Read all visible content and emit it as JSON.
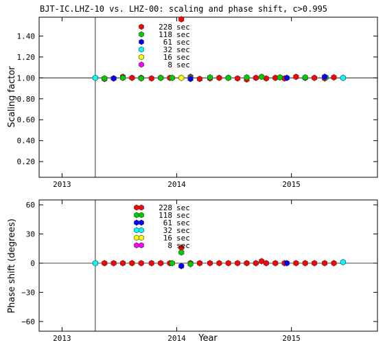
{
  "chart_data": [
    {
      "type": "scatter",
      "title": "BJT-IC.LHZ-10 vs. LHZ-00: scaling and phase shift, c>0.995",
      "xlabel": "",
      "ylabel": "Scaling factor",
      "xlim": [
        2012.8,
        2015.75
      ],
      "ylim": [
        0.05,
        1.58
      ],
      "x_tick_labels": [
        "2013",
        "2014",
        "2015"
      ],
      "x_ticks": [
        2013,
        2014,
        2015
      ],
      "y_tick_labels": [
        "0.20",
        "0.40",
        "0.60",
        "0.80",
        "1.00",
        "1.20",
        "1.40"
      ],
      "y_ticks": [
        0.2,
        0.4,
        0.6,
        0.8,
        1.0,
        1.2,
        1.4
      ],
      "vline_x": 2013.29,
      "hline_y": 1.0,
      "legend": {
        "placement": "top-left",
        "entries": [
          {
            "label": "228 sec",
            "color": "#ff0000"
          },
          {
            "label": "118 sec",
            "color": "#00cc00"
          },
          {
            "label": "61 sec",
            "color": "#0000ff"
          },
          {
            "label": "32 sec",
            "color": "#00ffff"
          },
          {
            "label": "16 sec",
            "color": "#ffff00"
          },
          {
            "label": "8 sec",
            "color": "#ff00ff"
          }
        ]
      },
      "series": [
        {
          "name": "228 sec",
          "color": "#ff0000",
          "points": [
            [
              2013.37,
              0.99
            ],
            [
              2013.45,
              0.995
            ],
            [
              2013.53,
              1.01
            ],
            [
              2013.61,
              1.0
            ],
            [
              2013.69,
              1.0
            ],
            [
              2013.78,
              0.995
            ],
            [
              2013.86,
              1.0
            ],
            [
              2013.94,
              1.0
            ],
            [
              2014.04,
              1.56
            ],
            [
              2014.12,
              1.01
            ],
            [
              2014.2,
              0.99
            ],
            [
              2014.29,
              0.995
            ],
            [
              2014.37,
              1.0
            ],
            [
              2014.45,
              1.0
            ],
            [
              2014.53,
              0.995
            ],
            [
              2014.61,
              0.985
            ],
            [
              2014.69,
              1.0
            ],
            [
              2014.78,
              0.995
            ],
            [
              2014.86,
              1.0
            ],
            [
              2014.94,
              0.995
            ],
            [
              2015.04,
              1.01
            ],
            [
              2015.12,
              1.0
            ],
            [
              2015.2,
              1.0
            ],
            [
              2015.29,
              0.995
            ],
            [
              2015.37,
              1.005
            ]
          ]
        },
        {
          "name": "118 sec",
          "color": "#00cc00",
          "points": [
            [
              2013.37,
              0.995
            ],
            [
              2013.53,
              1.0
            ],
            [
              2013.69,
              0.995
            ],
            [
              2013.86,
              1.0
            ],
            [
              2013.96,
              1.0
            ],
            [
              2014.12,
              1.0
            ],
            [
              2014.29,
              1.005
            ],
            [
              2014.45,
              1.0
            ],
            [
              2014.61,
              1.005
            ],
            [
              2014.74,
              1.01
            ],
            [
              2014.9,
              1.005
            ],
            [
              2015.12,
              1.005
            ],
            [
              2015.3,
              1.005
            ]
          ]
        },
        {
          "name": "61 sec",
          "color": "#0000ff",
          "points": [
            [
              2013.45,
              0.995
            ],
            [
              2014.12,
              0.99
            ],
            [
              2014.96,
              1.0
            ],
            [
              2015.29,
              1.01
            ]
          ]
        },
        {
          "name": "32 sec",
          "color": "#00ffff",
          "points": [
            [
              2013.29,
              1.0
            ],
            [
              2015.45,
              1.0
            ]
          ]
        },
        {
          "name": "16 sec",
          "color": "#ffff00",
          "points": [
            [
              2014.04,
              1.0
            ]
          ]
        },
        {
          "name": "8 sec",
          "color": "#ff00ff",
          "points": []
        }
      ]
    },
    {
      "type": "scatter",
      "title": "",
      "xlabel": "Year",
      "ylabel": "Phase shift (degrees)",
      "xlim": [
        2012.8,
        2015.75
      ],
      "ylim": [
        -70,
        65
      ],
      "x_tick_labels": [
        "2013",
        "2014",
        "2015"
      ],
      "x_ticks": [
        2013,
        2014,
        2015
      ],
      "y_tick_labels": [
        "60",
        "30",
        "0",
        "−30",
        "−60"
      ],
      "y_ticks": [
        60,
        30,
        0,
        -30,
        -60
      ],
      "vline_x": 2013.29,
      "hline_y": 0,
      "legend": {
        "placement": "top-left",
        "entries": [
          {
            "label": "228 sec",
            "color": "#ff0000"
          },
          {
            "label": "118 sec",
            "color": "#00cc00"
          },
          {
            "label": "61 sec",
            "color": "#0000ff"
          },
          {
            "label": "32 sec",
            "color": "#00ffff"
          },
          {
            "label": "16 sec",
            "color": "#ffff00"
          },
          {
            "label": "8 sec",
            "color": "#ff00ff"
          }
        ]
      },
      "series": [
        {
          "name": "228 sec",
          "color": "#ff0000",
          "points": [
            [
              2013.37,
              0
            ],
            [
              2013.45,
              0
            ],
            [
              2013.53,
              0
            ],
            [
              2013.61,
              0
            ],
            [
              2013.69,
              0
            ],
            [
              2013.78,
              0
            ],
            [
              2013.86,
              0
            ],
            [
              2013.94,
              0
            ],
            [
              2014.04,
              16
            ],
            [
              2014.12,
              0
            ],
            [
              2014.2,
              0
            ],
            [
              2014.29,
              0
            ],
            [
              2014.37,
              0
            ],
            [
              2014.45,
              0
            ],
            [
              2014.53,
              0
            ],
            [
              2014.61,
              0
            ],
            [
              2014.69,
              0
            ],
            [
              2014.74,
              2
            ],
            [
              2014.78,
              0
            ],
            [
              2014.86,
              0
            ],
            [
              2014.94,
              0
            ],
            [
              2015.04,
              0
            ],
            [
              2015.12,
              0
            ],
            [
              2015.2,
              0
            ],
            [
              2015.29,
              0
            ],
            [
              2015.37,
              0
            ]
          ]
        },
        {
          "name": "118 sec",
          "color": "#00cc00",
          "points": [
            [
              2013.96,
              0
            ],
            [
              2014.04,
              11
            ],
            [
              2014.12,
              -1
            ]
          ]
        },
        {
          "name": "61 sec",
          "color": "#0000ff",
          "points": [
            [
              2014.04,
              -3
            ],
            [
              2014.96,
              0
            ]
          ]
        },
        {
          "name": "32 sec",
          "color": "#00ffff",
          "points": [
            [
              2013.29,
              0
            ],
            [
              2015.45,
              1
            ]
          ]
        },
        {
          "name": "16 sec",
          "color": "#ffff00",
          "points": []
        },
        {
          "name": "8 sec",
          "color": "#ff00ff",
          "points": []
        }
      ]
    }
  ]
}
